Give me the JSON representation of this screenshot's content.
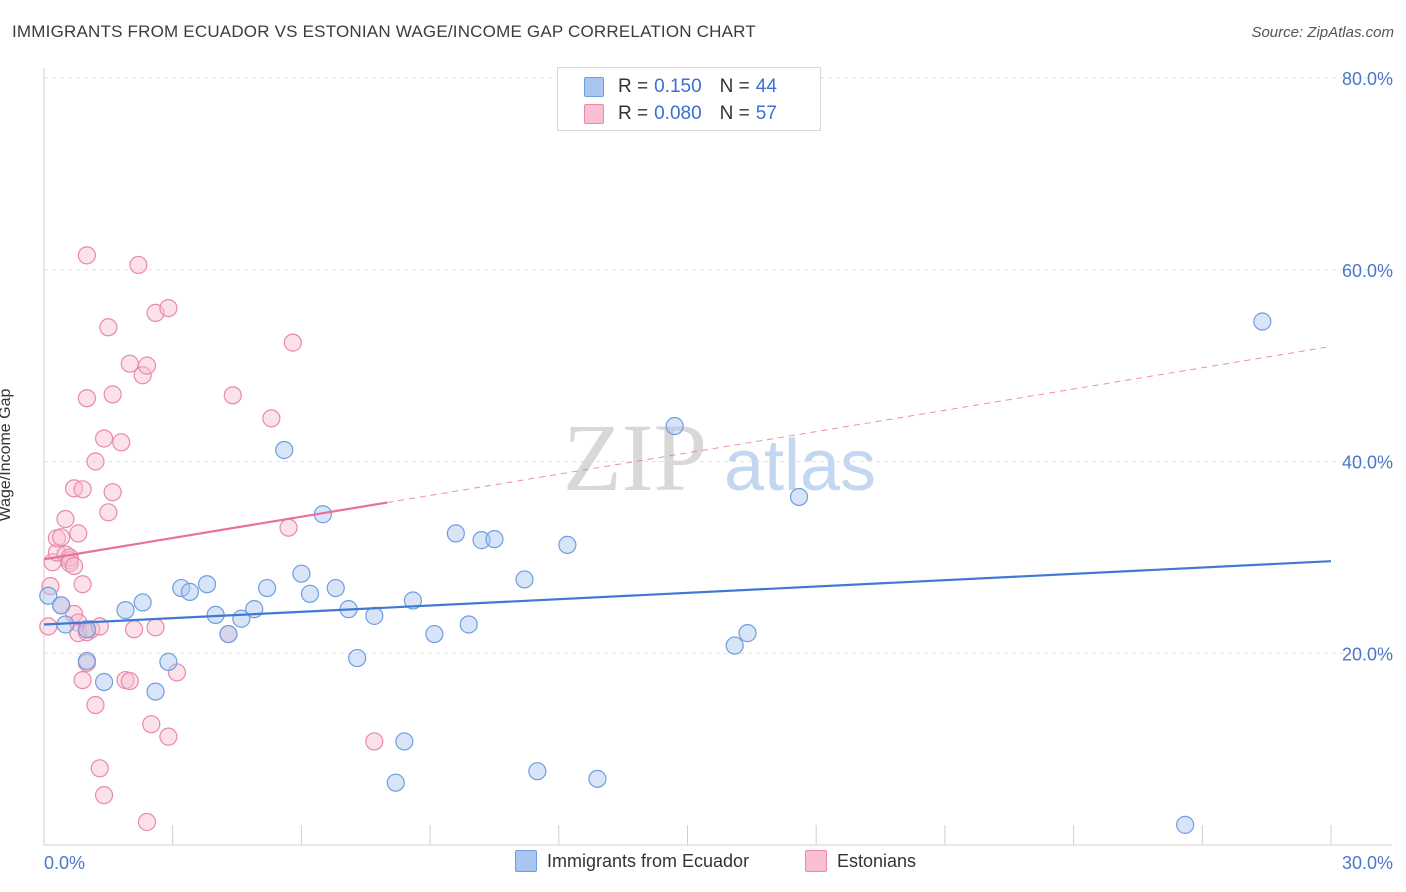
{
  "header": {
    "title": "IMMIGRANTS FROM ECUADOR VS ESTONIAN WAGE/INCOME GAP CORRELATION CHART",
    "source": "Source: ZipAtlas.com"
  },
  "watermark": {
    "zip": "ZIP",
    "atlas": "atlas"
  },
  "legend": {
    "r_label": "R =",
    "n_label": "N =",
    "rows": [
      {
        "r": "0.150",
        "n": "44",
        "color": "#a9c6f0",
        "border": "#6e9ee0"
      },
      {
        "r": "0.080",
        "n": "57",
        "color": "#f7bfd0",
        "border": "#e88aa8"
      }
    ]
  },
  "bottom_legend": [
    {
      "label": "Immigrants from Ecuador",
      "color": "#a9c6f0",
      "border": "#6e9ee0"
    },
    {
      "label": "Estonians",
      "color": "#f7bfd0",
      "border": "#e88aa8"
    }
  ],
  "chart_data": {
    "type": "scatter",
    "title": "IMMIGRANTS FROM ECUADOR VS ESTONIAN WAGE/INCOME GAP CORRELATION CHART",
    "xlabel": "",
    "ylabel": "Wage/Income Gap",
    "xlim": [
      0,
      30
    ],
    "ylim": [
      0,
      80
    ],
    "x_tick_labels": [
      "0.0%",
      "30.0%"
    ],
    "y_ticks": [
      20,
      40,
      60,
      80
    ],
    "y_tick_labels": [
      "20.0%",
      "40.0%",
      "60.0%",
      "80.0%"
    ],
    "grid": true,
    "colors": {
      "blue": "#3f79d4",
      "pink": "#e8709a",
      "blue_fill": "rgba(169,198,240,0.45)",
      "pink_fill": "rgba(247,191,208,0.45)",
      "blue_stroke": "#6e9ee0",
      "pink_stroke": "#e88aa8"
    },
    "series": [
      {
        "name": "Immigrants from Ecuador",
        "trend": {
          "x0": 0,
          "y0": 23.0,
          "x1": 30,
          "y1": 29.6,
          "dashed_from": null
        },
        "points": [
          [
            0.1,
            26.0
          ],
          [
            0.4,
            25.0
          ],
          [
            0.5,
            23.0
          ],
          [
            1.0,
            22.5
          ],
          [
            1.0,
            19.2
          ],
          [
            1.4,
            17.0
          ],
          [
            1.9,
            24.5
          ],
          [
            2.3,
            25.3
          ],
          [
            2.6,
            16.0
          ],
          [
            2.9,
            19.1
          ],
          [
            3.2,
            26.8
          ],
          [
            3.4,
            26.4
          ],
          [
            3.8,
            27.2
          ],
          [
            4.0,
            24.0
          ],
          [
            4.3,
            22.0
          ],
          [
            4.6,
            23.6
          ],
          [
            4.9,
            24.6
          ],
          [
            5.2,
            26.8
          ],
          [
            5.6,
            41.2
          ],
          [
            6.0,
            28.3
          ],
          [
            6.2,
            26.2
          ],
          [
            6.5,
            34.5
          ],
          [
            6.8,
            26.8
          ],
          [
            7.1,
            24.6
          ],
          [
            7.3,
            19.5
          ],
          [
            7.7,
            23.9
          ],
          [
            8.2,
            6.5
          ],
          [
            8.4,
            10.8
          ],
          [
            8.6,
            25.5
          ],
          [
            9.1,
            22.0
          ],
          [
            9.6,
            32.5
          ],
          [
            9.9,
            23.0
          ],
          [
            10.2,
            31.8
          ],
          [
            10.5,
            31.9
          ],
          [
            11.2,
            27.7
          ],
          [
            11.5,
            7.7
          ],
          [
            12.2,
            31.3
          ],
          [
            12.9,
            6.9
          ],
          [
            14.7,
            43.7
          ],
          [
            16.1,
            20.8
          ],
          [
            16.4,
            22.1
          ],
          [
            17.6,
            36.3
          ],
          [
            26.6,
            2.1
          ],
          [
            28.4,
            54.6
          ]
        ]
      },
      {
        "name": "Estonians",
        "trend": {
          "x0": 0,
          "y0": 29.8,
          "x1": 30,
          "y1": 52.0,
          "dashed_from": 8.0
        },
        "points": [
          [
            0.1,
            22.8
          ],
          [
            0.15,
            27.0
          ],
          [
            0.2,
            29.5
          ],
          [
            0.3,
            30.5
          ],
          [
            0.3,
            32.0
          ],
          [
            0.4,
            32.1
          ],
          [
            0.4,
            25.0
          ],
          [
            0.5,
            30.3
          ],
          [
            0.5,
            34.0
          ],
          [
            0.6,
            29.7
          ],
          [
            0.6,
            30.0
          ],
          [
            0.6,
            29.4
          ],
          [
            0.7,
            24.1
          ],
          [
            0.7,
            37.2
          ],
          [
            0.7,
            29.1
          ],
          [
            0.8,
            32.5
          ],
          [
            0.8,
            23.2
          ],
          [
            0.8,
            22.1
          ],
          [
            0.9,
            27.2
          ],
          [
            0.9,
            37.1
          ],
          [
            0.9,
            17.2
          ],
          [
            1.0,
            46.6
          ],
          [
            1.0,
            19.0
          ],
          [
            1.0,
            22.2
          ],
          [
            1.0,
            61.5
          ],
          [
            1.1,
            22.5
          ],
          [
            1.2,
            14.6
          ],
          [
            1.2,
            40.0
          ],
          [
            1.3,
            22.8
          ],
          [
            1.3,
            8.0
          ],
          [
            1.4,
            42.4
          ],
          [
            1.4,
            5.2
          ],
          [
            1.5,
            54.0
          ],
          [
            1.5,
            34.7
          ],
          [
            1.6,
            47.0
          ],
          [
            1.6,
            36.8
          ],
          [
            1.8,
            42.0
          ],
          [
            1.9,
            17.2
          ],
          [
            2.0,
            50.2
          ],
          [
            2.0,
            17.1
          ],
          [
            2.1,
            22.5
          ],
          [
            2.2,
            60.5
          ],
          [
            2.3,
            49.0
          ],
          [
            2.4,
            2.4
          ],
          [
            2.4,
            50.0
          ],
          [
            2.5,
            12.6
          ],
          [
            2.6,
            22.7
          ],
          [
            2.6,
            55.5
          ],
          [
            2.9,
            56.0
          ],
          [
            2.9,
            11.3
          ],
          [
            3.1,
            18.0
          ],
          [
            4.3,
            22.0
          ],
          [
            4.4,
            46.9
          ],
          [
            5.3,
            44.5
          ],
          [
            5.7,
            33.1
          ],
          [
            5.8,
            52.4
          ],
          [
            7.7,
            10.8
          ]
        ]
      }
    ]
  }
}
